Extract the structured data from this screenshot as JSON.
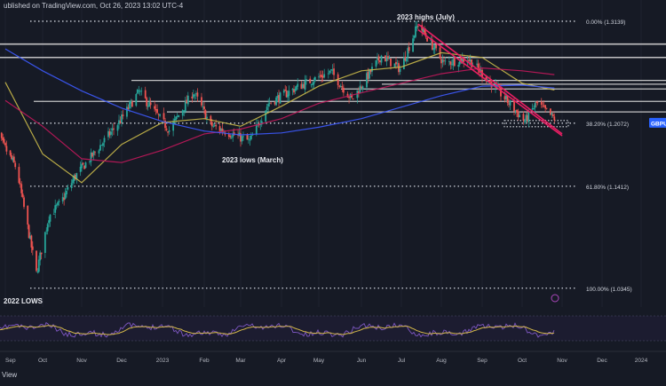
{
  "header": {
    "published_text": "ublished on TradingView.com, Oct 26, 2023 13:02 UTC-4"
  },
  "footer": {
    "label": "View"
  },
  "colors": {
    "background": "#161a25",
    "bull": "#26a69a",
    "bear": "#ef5350",
    "sma_yellow": "#c9b94a",
    "sma_red": "#c2185b",
    "sma_blue": "#3d5afe",
    "trendline": "#e91e63",
    "rsi": "#7e57c2",
    "rsi_signal": "#d4b84a",
    "level_line": "#e0e0e0",
    "tag_bg": "#2962ff"
  },
  "chart_data": {
    "type": "candlestick",
    "ylim": [
      1.025,
      1.325
    ],
    "x_ticks": [
      "Sep",
      "Oct",
      "Nov",
      "Dec",
      "2023",
      "Feb",
      "Mar",
      "Apr",
      "May",
      "Jun",
      "Jul",
      "Aug",
      "Sep",
      "Oct",
      "Nov",
      "Dec",
      "2024"
    ],
    "annotations": [
      {
        "text": "2023 highs (July)"
      },
      {
        "text": "2023 lows (March)"
      },
      {
        "text": "2022 LOWS"
      }
    ],
    "fib_levels": [
      {
        "label": "0.00% (1.3139)",
        "value": 1.3139
      },
      {
        "label": "38.20% (1.2072)",
        "value": 1.2072
      },
      {
        "label": "61.80% (1.1412)",
        "value": 1.1412
      },
      {
        "label": "100.00% (1.0345)",
        "value": 1.0345
      }
    ],
    "price_tag": "GBPUSD",
    "horizontal_levels": [
      1.29,
      1.276,
      1.23,
      1.252,
      1.219,
      1.243,
      1.248
    ],
    "sma_yellow": [
      [
        "2022-09-01",
        1.25
      ],
      [
        "2022-10-01",
        1.175
      ],
      [
        "2022-11-01",
        1.145
      ],
      [
        "2022-12-01",
        1.185
      ],
      [
        "2023-01-01",
        1.208
      ],
      [
        "2023-02-01",
        1.212
      ],
      [
        "2023-03-01",
        1.204
      ],
      [
        "2023-04-01",
        1.225
      ],
      [
        "2023-05-01",
        1.246
      ],
      [
        "2023-06-01",
        1.262
      ],
      [
        "2023-07-01",
        1.266
      ],
      [
        "2023-08-01",
        1.281
      ],
      [
        "2023-09-01",
        1.276
      ],
      [
        "2023-10-01",
        1.249
      ],
      [
        "2023-10-26",
        1.242
      ]
    ],
    "sma_red": [
      [
        "2022-09-01",
        1.231
      ],
      [
        "2022-10-01",
        1.204
      ],
      [
        "2022-11-01",
        1.17
      ],
      [
        "2022-12-01",
        1.166
      ],
      [
        "2023-01-01",
        1.179
      ],
      [
        "2023-02-01",
        1.196
      ],
      [
        "2023-03-01",
        1.201
      ],
      [
        "2023-04-01",
        1.212
      ],
      [
        "2023-05-01",
        1.228
      ],
      [
        "2023-06-01",
        1.239
      ],
      [
        "2023-07-01",
        1.249
      ],
      [
        "2023-08-01",
        1.259
      ],
      [
        "2023-09-01",
        1.265
      ],
      [
        "2023-10-01",
        1.262
      ],
      [
        "2023-10-26",
        1.258
      ]
    ],
    "sma_blue": [
      [
        "2022-09-01",
        1.285
      ],
      [
        "2022-10-01",
        1.262
      ],
      [
        "2022-11-01",
        1.241
      ],
      [
        "2022-12-01",
        1.223
      ],
      [
        "2023-01-01",
        1.209
      ],
      [
        "2023-02-01",
        1.199
      ],
      [
        "2023-03-01",
        1.195
      ],
      [
        "2023-04-01",
        1.197
      ],
      [
        "2023-05-01",
        1.203
      ],
      [
        "2023-06-01",
        1.212
      ],
      [
        "2023-07-01",
        1.224
      ],
      [
        "2023-08-01",
        1.236
      ],
      [
        "2023-09-01",
        1.246
      ],
      [
        "2023-10-01",
        1.247
      ],
      [
        "2023-10-26",
        1.244
      ]
    ],
    "trendlines": [
      {
        "from": [
          "2023-07-14",
          1.311
        ],
        "to": [
          "2023-11-01",
          1.196
        ]
      },
      {
        "from": [
          "2023-07-14",
          1.305
        ],
        "to": [
          "2023-11-01",
          1.194
        ]
      }
    ]
  }
}
